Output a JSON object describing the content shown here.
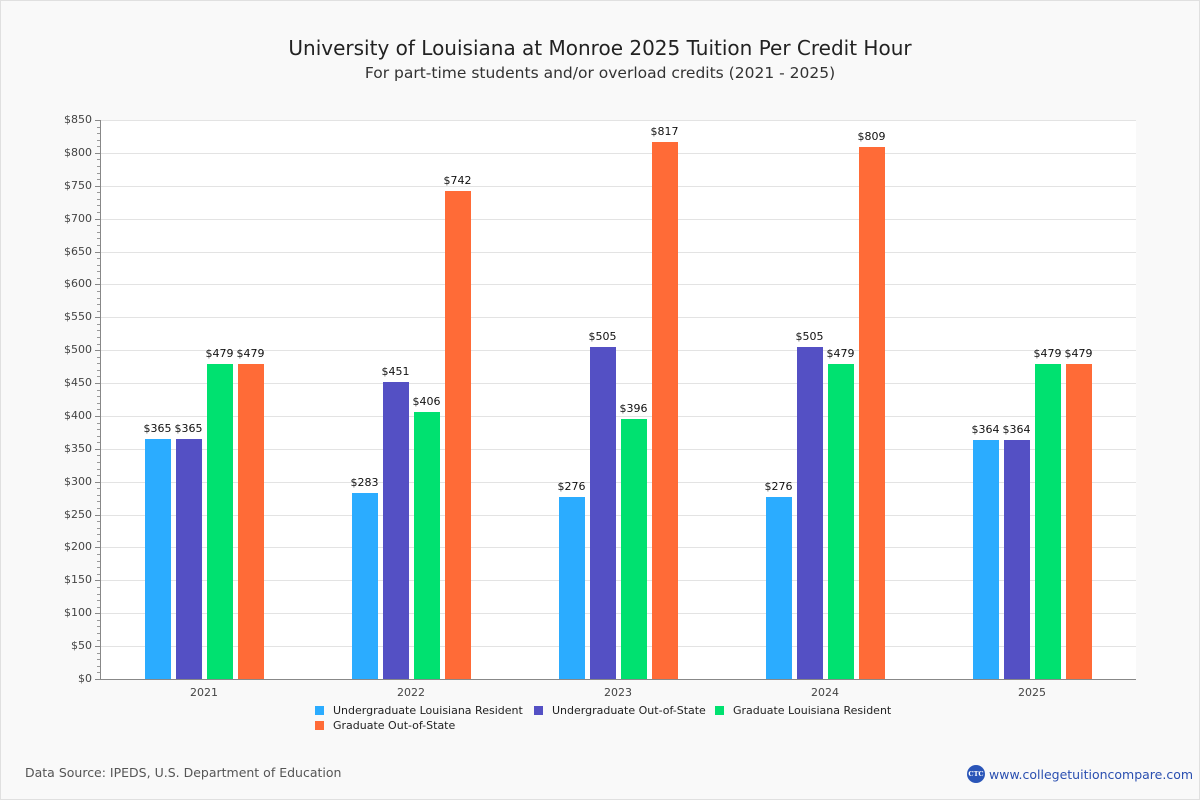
{
  "header": {
    "title": "University of Louisiana at Monroe 2025 Tuition Per Credit Hour",
    "subtitle": "For part-time students and/or overload credits (2021 - 2025)"
  },
  "footer": {
    "source": "Data Source: IPEDS, U.S. Department of Education",
    "brand_logo": "CTC",
    "brand_url": "www.collegetuitioncompare.com"
  },
  "colors": {
    "undergrad_resident": "#2bacff",
    "undergrad_out_of_state": "#5450c4",
    "grad_resident": "#00e170",
    "grad_out_of_state": "#ff6b37"
  },
  "chart_data": {
    "type": "bar",
    "title": "University of Louisiana at Monroe 2025 Tuition Per Credit Hour",
    "subtitle": "For part-time students and/or overload credits (2021 - 2025)",
    "xlabel": "",
    "ylabel": "",
    "ylim": [
      0,
      850
    ],
    "yticks": [
      "$0",
      "$50",
      "$100",
      "$150",
      "$200",
      "$250",
      "$300",
      "$350",
      "$400",
      "$450",
      "$500",
      "$550",
      "$600",
      "$650",
      "$700",
      "$750",
      "$800",
      "$850"
    ],
    "grid": true,
    "legend_position": "bottom",
    "categories": [
      "2021",
      "2022",
      "2023",
      "2024",
      "2025"
    ],
    "series": [
      {
        "name": "Undergraduate Louisiana Resident",
        "color": "#2bacff",
        "values": [
          365,
          283,
          276,
          276,
          364
        ],
        "labels": [
          "$365",
          "$283",
          "$276",
          "$276",
          "$364"
        ]
      },
      {
        "name": "Undergraduate Out-of-State",
        "color": "#5450c4",
        "values": [
          365,
          451,
          505,
          505,
          364
        ],
        "labels": [
          "$365",
          "$451",
          "$505",
          "$505",
          "$364"
        ]
      },
      {
        "name": "Graduate Louisiana Resident",
        "color": "#00e170",
        "values": [
          479,
          406,
          396,
          479,
          479
        ],
        "labels": [
          "$479",
          "$406",
          "$396",
          "$479",
          "$479"
        ]
      },
      {
        "name": "Graduate Out-of-State",
        "color": "#ff6b37",
        "values": [
          479,
          742,
          817,
          809,
          479
        ],
        "labels": [
          "$479",
          "$742",
          "$817",
          "$809",
          "$479"
        ]
      }
    ]
  }
}
